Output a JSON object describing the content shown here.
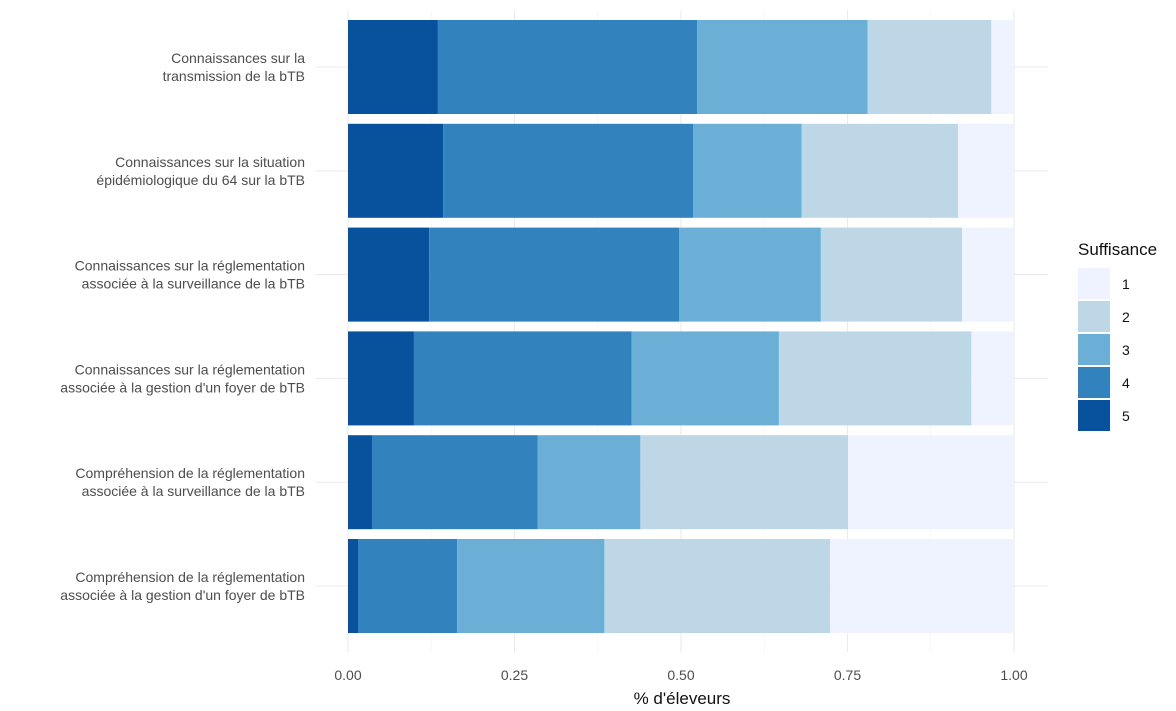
{
  "chart_data": {
    "type": "bar",
    "orientation": "horizontal",
    "stacked": true,
    "title": "",
    "xlabel": "% d'éleveurs",
    "ylabel": "",
    "xlim": [
      0,
      1
    ],
    "xticks": [
      "0.00",
      "0.25",
      "0.50",
      "0.75",
      "1.00"
    ],
    "grid": true,
    "legend": {
      "title": "Suffisance",
      "position": "right"
    },
    "categories": [
      [
        "Connaissances sur la",
        "transmission de la bTB"
      ],
      [
        "Connaissances sur la situation",
        "épidémiologique du 64 sur la bTB"
      ],
      [
        "Connaissances sur la réglementation",
        "associée à la surveillance de la bTB"
      ],
      [
        "Connaissances sur la réglementation",
        "associée à la gestion d'un foyer de bTB"
      ],
      [
        "Compréhension de la réglementation",
        "associée à la surveillance de la bTB"
      ],
      [
        "Compréhension de la réglementation",
        "associée à la gestion d'un foyer de bTB"
      ]
    ],
    "series": [
      {
        "name": "5",
        "color": "#08519c",
        "values": [
          0.135,
          0.143,
          0.122,
          0.099,
          0.036,
          0.015
        ]
      },
      {
        "name": "4",
        "color": "#3182bd",
        "values": [
          0.389,
          0.375,
          0.375,
          0.327,
          0.249,
          0.149
        ]
      },
      {
        "name": "3",
        "color": "#6baed6",
        "values": [
          0.256,
          0.163,
          0.213,
          0.221,
          0.154,
          0.221
        ]
      },
      {
        "name": "2",
        "color": "#bdd7e7",
        "values": [
          0.186,
          0.235,
          0.212,
          0.289,
          0.312,
          0.339
        ]
      },
      {
        "name": "1",
        "color": "#eff3ff",
        "values": [
          0.034,
          0.084,
          0.078,
          0.064,
          0.249,
          0.276
        ]
      }
    ],
    "legend_order": [
      "1",
      "2",
      "3",
      "4",
      "5"
    ]
  }
}
